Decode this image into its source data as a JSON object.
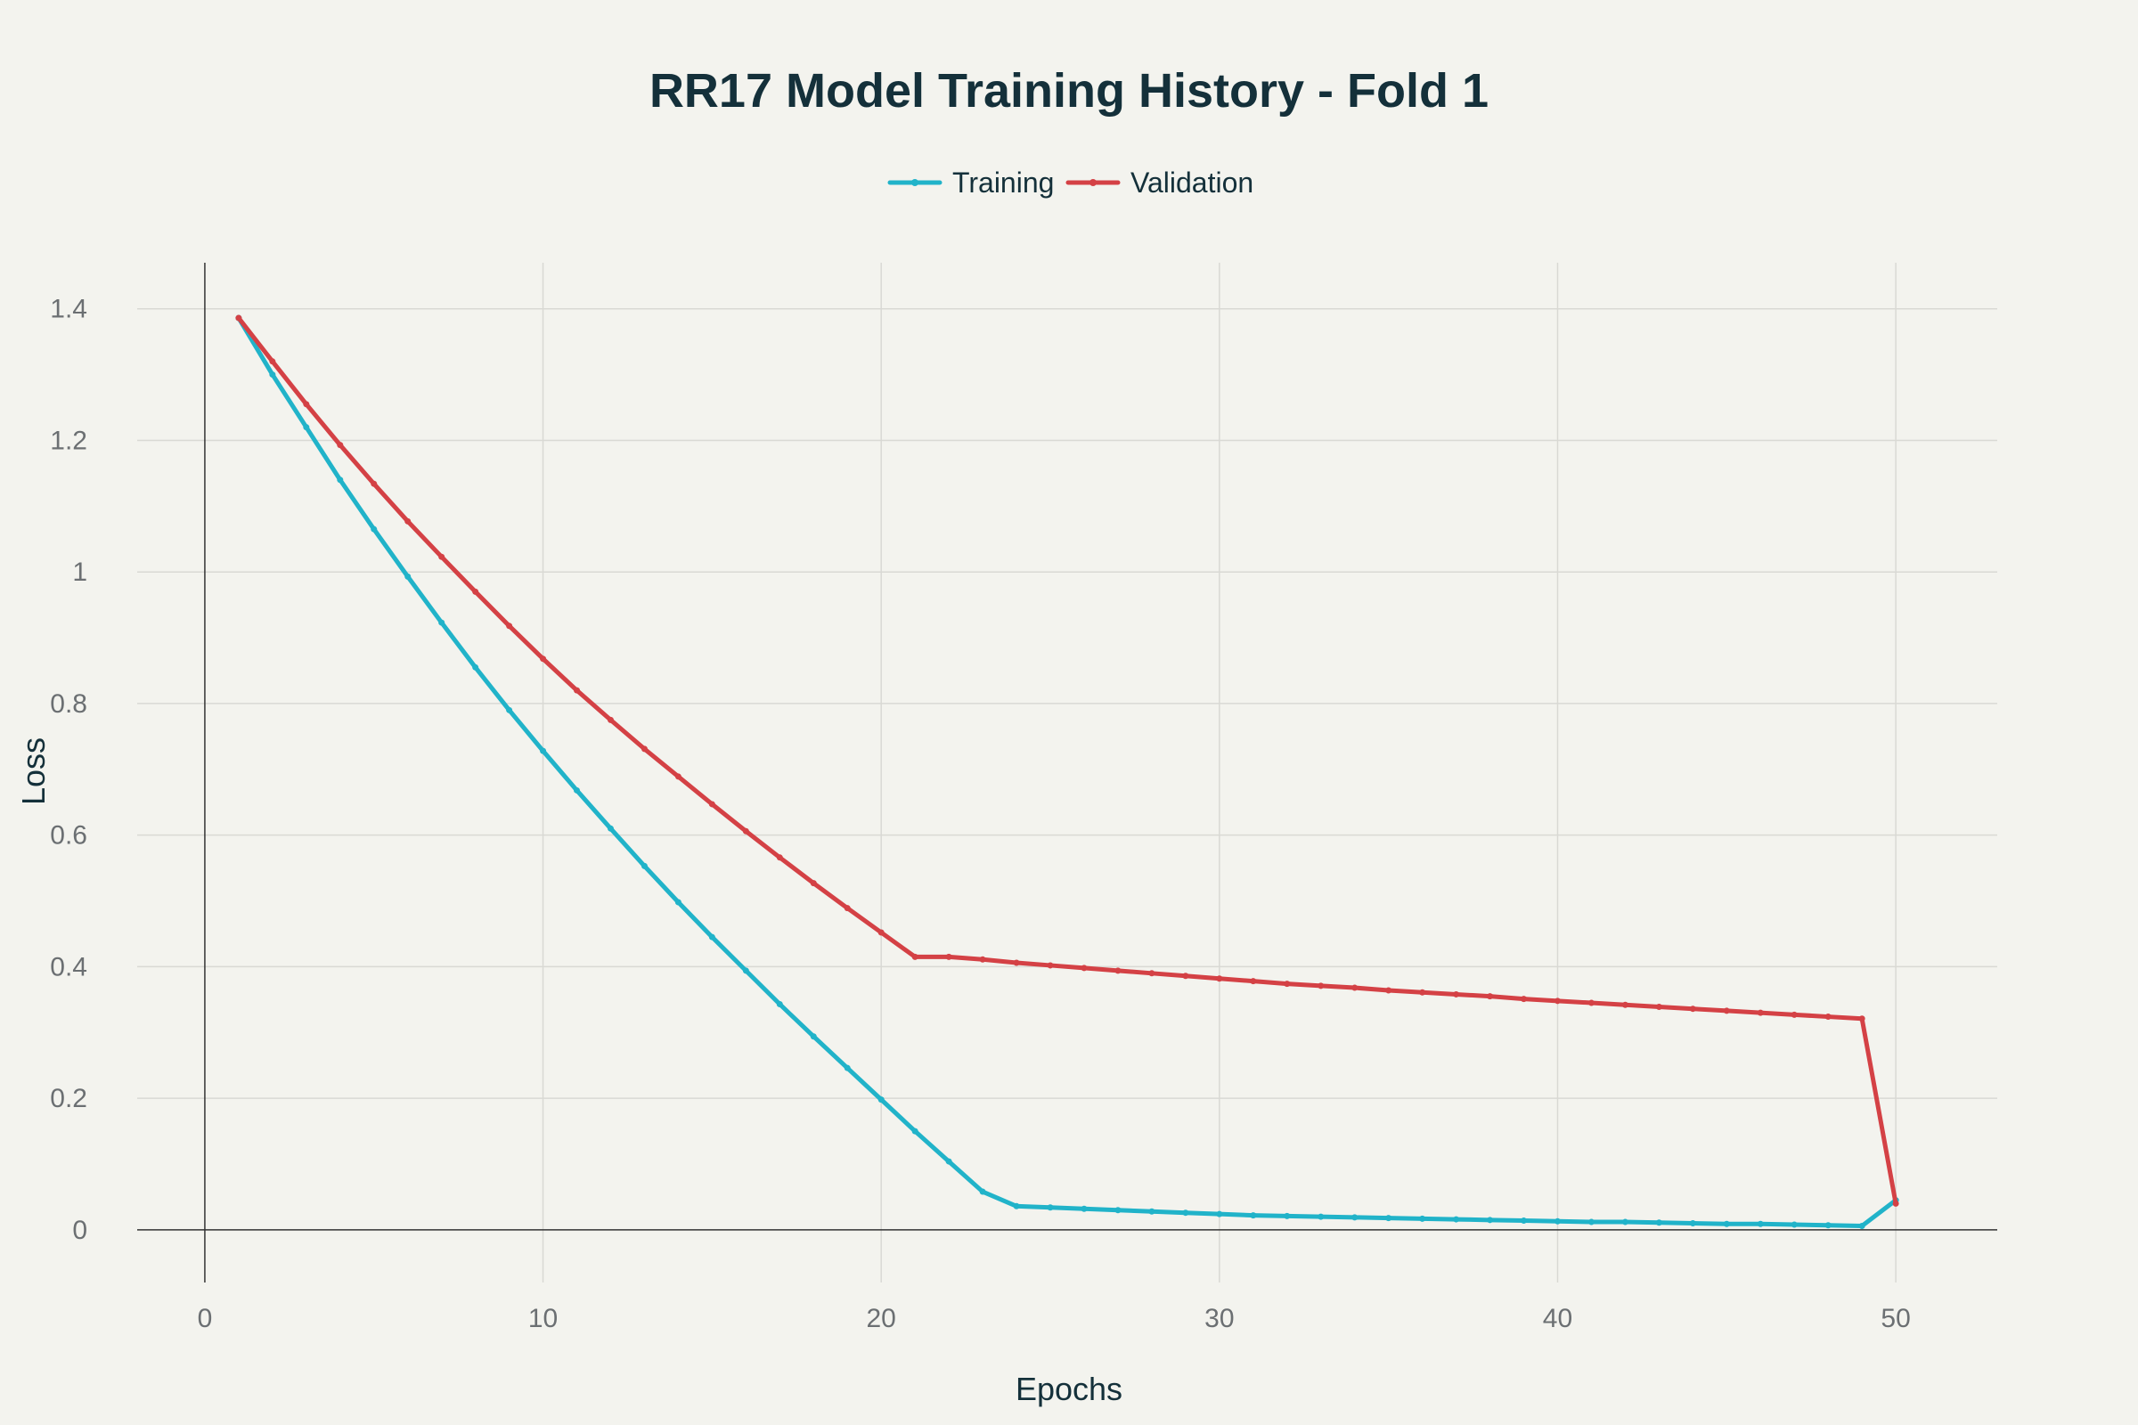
{
  "chart_data": {
    "type": "line",
    "title": "RR17 Model Training History - Fold 1",
    "xlabel": "Epochs",
    "ylabel": "Loss",
    "xlim": [
      -2,
      53
    ],
    "ylim": [
      -0.08,
      1.47
    ],
    "xticks": [
      0,
      10,
      20,
      30,
      40,
      50
    ],
    "xtick_labels": [
      "0",
      "10",
      "20",
      "30",
      "40",
      "50"
    ],
    "yticks": [
      0,
      0.2,
      0.4,
      0.6,
      0.8,
      1,
      1.2,
      1.4
    ],
    "ytick_labels": [
      "0",
      "0.2",
      "0.4",
      "0.6",
      "0.8",
      "1",
      "1.2",
      "1.4"
    ],
    "grid": true,
    "legend_position": "top-center",
    "x": [
      1,
      2,
      3,
      4,
      5,
      6,
      7,
      8,
      9,
      10,
      11,
      12,
      13,
      14,
      15,
      16,
      17,
      18,
      19,
      20,
      21,
      22,
      23,
      24,
      25,
      26,
      27,
      28,
      29,
      30,
      31,
      32,
      33,
      34,
      35,
      36,
      37,
      38,
      39,
      40,
      41,
      42,
      43,
      44,
      45,
      46,
      47,
      48,
      49,
      50
    ],
    "series": [
      {
        "name": "Training",
        "color": "#21b3c9",
        "values": [
          1.386,
          1.3,
          1.22,
          1.14,
          1.065,
          0.993,
          0.923,
          0.855,
          0.79,
          0.728,
          0.668,
          0.61,
          0.553,
          0.498,
          0.445,
          0.394,
          0.343,
          0.294,
          0.246,
          0.198,
          0.15,
          0.104,
          0.058,
          0.036,
          0.034,
          0.032,
          0.03,
          0.028,
          0.026,
          0.024,
          0.022,
          0.021,
          0.02,
          0.019,
          0.018,
          0.017,
          0.016,
          0.015,
          0.014,
          0.013,
          0.012,
          0.012,
          0.011,
          0.01,
          0.009,
          0.009,
          0.008,
          0.007,
          0.006,
          0.045
        ]
      },
      {
        "name": "Validation",
        "color": "#d44145",
        "values": [
          1.386,
          1.32,
          1.255,
          1.193,
          1.134,
          1.077,
          1.023,
          0.97,
          0.918,
          0.868,
          0.82,
          0.775,
          0.731,
          0.689,
          0.647,
          0.606,
          0.566,
          0.527,
          0.489,
          0.452,
          0.415,
          0.415,
          0.411,
          0.406,
          0.402,
          0.398,
          0.394,
          0.39,
          0.386,
          0.382,
          0.378,
          0.374,
          0.371,
          0.368,
          0.364,
          0.361,
          0.358,
          0.355,
          0.351,
          0.348,
          0.345,
          0.342,
          0.339,
          0.336,
          0.333,
          0.33,
          0.327,
          0.324,
          0.321,
          0.04
        ]
      }
    ]
  }
}
